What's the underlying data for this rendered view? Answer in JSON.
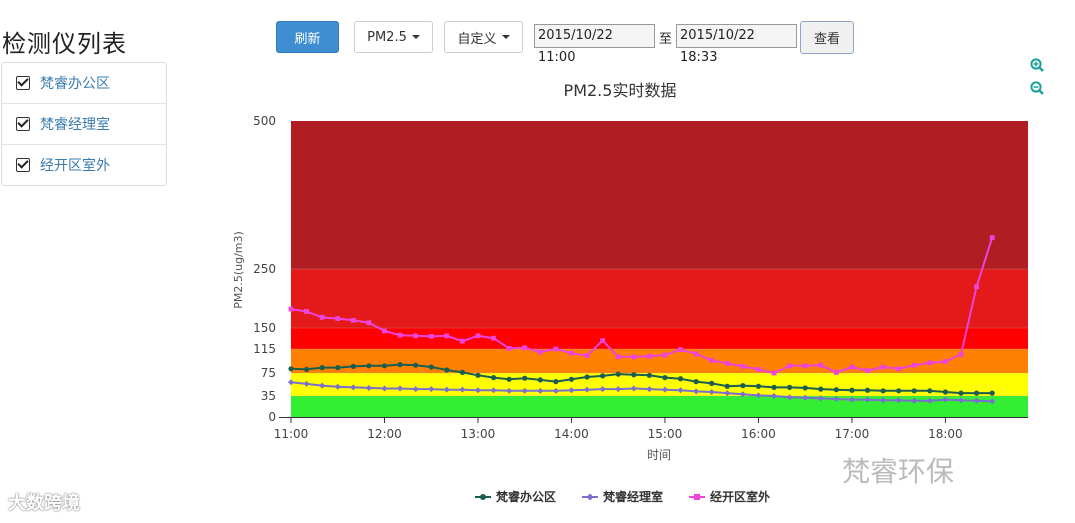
{
  "sidebar": {
    "title": "检测仪列表",
    "items": [
      {
        "label": "梵睿办公区"
      },
      {
        "label": "梵睿经理室"
      },
      {
        "label": "经开区室外"
      }
    ]
  },
  "toolbar": {
    "refresh_label": "刷新",
    "metric_label": "PM2.5",
    "range_label": "自定义",
    "start_date": "2015/10/22 11:00",
    "to_label": "至",
    "end_date": "2015/10/22 18:33",
    "view_label": "查看"
  },
  "watermarks": {
    "left": "大数跨境",
    "right": "梵睿环保"
  },
  "chart_data": {
    "type": "line",
    "title": "PM2.5实时数据",
    "xlabel": "时间",
    "ylabel": "PM2.5(ug/m3)",
    "x_ticks": [
      "11:00",
      "12:00",
      "13:00",
      "14:00",
      "15:00",
      "16:00",
      "17:00",
      "18:00"
    ],
    "y_ticks": [
      0,
      35,
      75,
      115,
      150,
      250,
      500
    ],
    "ylim": [
      0,
      500
    ],
    "xlim_minutes": [
      0,
      473
    ],
    "y_scale": "piecewise by bands",
    "x": [
      "11:00",
      "11:10",
      "11:20",
      "11:30",
      "11:40",
      "11:50",
      "12:00",
      "12:10",
      "12:20",
      "12:30",
      "12:40",
      "12:50",
      "13:00",
      "13:10",
      "13:20",
      "13:30",
      "13:40",
      "13:50",
      "14:00",
      "14:10",
      "14:20",
      "14:30",
      "14:40",
      "14:50",
      "15:00",
      "15:10",
      "15:20",
      "15:30",
      "15:40",
      "15:50",
      "16:00",
      "16:10",
      "16:20",
      "16:30",
      "16:40",
      "16:50",
      "17:00",
      "17:10",
      "17:20",
      "17:30",
      "17:40",
      "17:50",
      "18:00",
      "18:10",
      "18:20",
      "18:30"
    ],
    "bands": [
      {
        "from": 0,
        "to": 35,
        "color": "#33ee33"
      },
      {
        "from": 35,
        "to": 75,
        "color": "#ffff00"
      },
      {
        "from": 75,
        "to": 115,
        "color": "#ff7f00"
      },
      {
        "from": 115,
        "to": 150,
        "color": "#ff0000"
      },
      {
        "from": 150,
        "to": 250,
        "color": "#e41a1a"
      },
      {
        "from": 250,
        "to": 500,
        "color": "#b01e23"
      }
    ],
    "series": [
      {
        "name": "梵睿办公区",
        "color": "#1a5e50",
        "marker": "circle",
        "values": [
          82,
          81,
          84,
          84,
          86,
          87,
          87,
          89,
          88,
          85,
          80,
          76,
          71,
          67,
          64,
          66,
          63,
          60,
          64,
          68,
          70,
          73,
          72,
          71,
          67,
          65,
          60,
          57,
          52,
          53,
          52,
          50,
          50,
          49,
          47,
          46,
          45,
          45,
          44,
          44,
          44,
          44,
          42,
          40,
          40,
          40
        ]
      },
      {
        "name": "梵睿经理室",
        "color": "#7b6fce",
        "marker": "diamond",
        "values": [
          59,
          56,
          53,
          51,
          50,
          49,
          48,
          48,
          47,
          47,
          46,
          46,
          45,
          45,
          44,
          44,
          44,
          44,
          45,
          46,
          47,
          47,
          48,
          47,
          46,
          45,
          43,
          42,
          40,
          38,
          36,
          35,
          33,
          32,
          31,
          30,
          29,
          29,
          28,
          28,
          27,
          27,
          29,
          28,
          27,
          26
        ]
      },
      {
        "name": "经开区室外",
        "color": "#ee44dd",
        "marker": "square",
        "values": [
          182,
          178,
          168,
          166,
          163,
          159,
          145,
          138,
          137,
          136,
          137,
          128,
          137,
          133,
          116,
          117,
          110,
          115,
          108,
          104,
          129,
          102,
          102,
          103,
          105,
          114,
          107,
          96,
          91,
          86,
          81,
          75,
          87,
          87,
          88,
          76,
          85,
          79,
          85,
          82,
          88,
          92,
          94,
          106,
          220,
          303
        ]
      }
    ],
    "legend_position": "bottom-center",
    "grid": false
  }
}
